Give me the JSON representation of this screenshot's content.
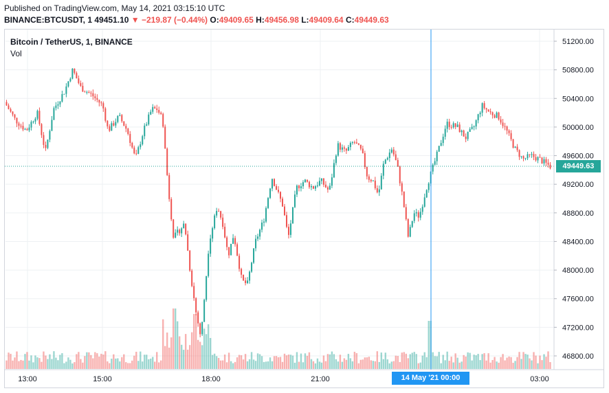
{
  "published": "Published on TradingView.com, May 14, 2021 03:15:10 UTC",
  "ticker": {
    "symbol": "BINANCE:BTCUSDT, 1",
    "last": "49451.10",
    "change": "▼ −219.87 (−0.44%)",
    "open_label": "O:",
    "open": "49409.65",
    "high_label": "H:",
    "high": "49456.98",
    "low_label": "L:",
    "low": "49409.64",
    "close_label": "C:",
    "close": "49449.63"
  },
  "colors": {
    "up": "#26a69a",
    "down": "#ef5350",
    "crosshair": "#2196f3",
    "grid": "#eef0f3"
  },
  "chart_data": {
    "type": "candlestick",
    "title": "Bitcoin / TetherUS, 1, BINANCE",
    "volume_label": "Vol",
    "y_ticks": [
      "51200.00",
      "50800.00",
      "50400.00",
      "50000.00",
      "49600.00",
      "49200.00",
      "48800.00",
      "48400.00",
      "48000.00",
      "47600.00",
      "47200.00",
      "46800.00"
    ],
    "x_ticks": [
      "13:00",
      "15:00",
      "18:00",
      "21:00",
      "03:00"
    ],
    "ylim": [
      46650,
      51300
    ],
    "last_price": "49449.63",
    "crosshair_label": "14 May '21   00:00",
    "grid": true,
    "price_path": [
      [
        0,
        50350
      ],
      [
        0.02,
        50100
      ],
      [
        0.04,
        49950
      ],
      [
        0.06,
        50200
      ],
      [
        0.075,
        49650
      ],
      [
        0.09,
        50250
      ],
      [
        0.11,
        50500
      ],
      [
        0.125,
        50800
      ],
      [
        0.14,
        50550
      ],
      [
        0.16,
        50450
      ],
      [
        0.18,
        50300
      ],
      [
        0.19,
        49950
      ],
      [
        0.21,
        50150
      ],
      [
        0.225,
        49950
      ],
      [
        0.24,
        49550
      ],
      [
        0.255,
        49950
      ],
      [
        0.27,
        50250
      ],
      [
        0.28,
        50250
      ],
      [
        0.29,
        50100
      ],
      [
        0.3,
        49150
      ],
      [
        0.31,
        48450
      ],
      [
        0.33,
        48650
      ],
      [
        0.34,
        48000
      ],
      [
        0.35,
        47450
      ],
      [
        0.36,
        47050
      ],
      [
        0.375,
        48400
      ],
      [
        0.39,
        48900
      ],
      [
        0.4,
        48650
      ],
      [
        0.41,
        48200
      ],
      [
        0.42,
        48500
      ],
      [
        0.435,
        47850
      ],
      [
        0.445,
        47800
      ],
      [
        0.46,
        48400
      ],
      [
        0.475,
        48700
      ],
      [
        0.49,
        49300
      ],
      [
        0.5,
        49100
      ],
      [
        0.51,
        48900
      ],
      [
        0.52,
        48450
      ],
      [
        0.535,
        49150
      ],
      [
        0.55,
        49250
      ],
      [
        0.565,
        49150
      ],
      [
        0.58,
        49250
      ],
      [
        0.595,
        49100
      ],
      [
        0.61,
        49750
      ],
      [
        0.625,
        49650
      ],
      [
        0.64,
        49800
      ],
      [
        0.655,
        49650
      ],
      [
        0.665,
        49300
      ],
      [
        0.675,
        49250
      ],
      [
        0.685,
        49050
      ],
      [
        0.695,
        49500
      ],
      [
        0.71,
        49700
      ],
      [
        0.72,
        49450
      ],
      [
        0.73,
        49000
      ],
      [
        0.74,
        48450
      ],
      [
        0.75,
        48800
      ],
      [
        0.76,
        48750
      ],
      [
        0.775,
        49200
      ],
      [
        0.79,
        49550
      ],
      [
        0.8,
        49800
      ],
      [
        0.81,
        50050
      ],
      [
        0.83,
        50000
      ],
      [
        0.845,
        49850
      ],
      [
        0.86,
        50000
      ],
      [
        0.875,
        50300
      ],
      [
        0.89,
        50200
      ],
      [
        0.905,
        50150
      ],
      [
        0.92,
        49950
      ],
      [
        0.935,
        49700
      ],
      [
        0.95,
        49550
      ],
      [
        0.965,
        49600
      ],
      [
        0.98,
        49550
      ],
      [
        1.0,
        49450
      ]
    ]
  }
}
